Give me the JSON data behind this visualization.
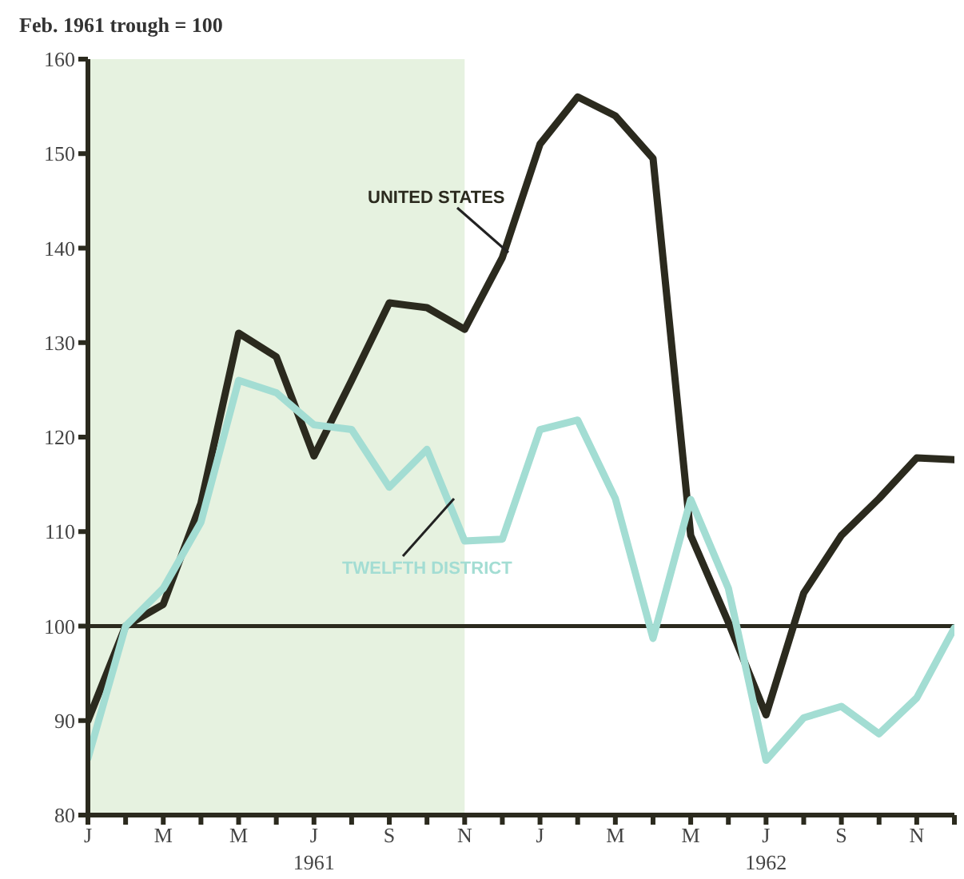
{
  "chart_data": {
    "type": "line",
    "ylabel": "Feb. 1961 trough = 100",
    "categories": [
      "J",
      null,
      "M",
      null,
      "M",
      null,
      "J",
      null,
      "S",
      null,
      "N",
      null,
      "J",
      null,
      "M",
      null,
      "M",
      null,
      "J",
      null,
      "S",
      null,
      "N",
      null
    ],
    "series": [
      {
        "name": "UNITED STATES",
        "color": "#2b2a1e",
        "values": [
          90,
          100,
          102.3,
          113,
          131,
          128.5,
          118,
          126,
          134.2,
          133.7,
          131.4,
          139,
          151,
          156,
          154,
          149.5,
          109.6,
          100.4,
          90.6,
          103.5,
          109.6,
          113.5,
          117.8,
          117.6
        ]
      },
      {
        "name": "TWELFTH DISTRICT",
        "color": "#a3ddd3",
        "values": [
          86,
          100,
          104,
          111,
          126,
          124.7,
          121.3,
          120.8,
          114.7,
          118.7,
          109,
          109.2,
          120.8,
          121.8,
          113.5,
          98.7,
          113.4,
          104,
          85.8,
          90.3,
          91.5,
          88.6,
          92.4,
          99.8
        ]
      }
    ],
    "ylim": [
      80,
      160
    ],
    "yticks": [
      80,
      90,
      100,
      110,
      120,
      130,
      140,
      150,
      160
    ],
    "ref_lines": [
      {
        "axis": "y",
        "value": 100,
        "color": "#2b2a1e"
      }
    ],
    "bands": [
      {
        "axis": "x",
        "from": "J",
        "to": "N",
        "color": "#e6f2e0"
      }
    ],
    "annotations": [
      "1961",
      "1962"
    ]
  }
}
